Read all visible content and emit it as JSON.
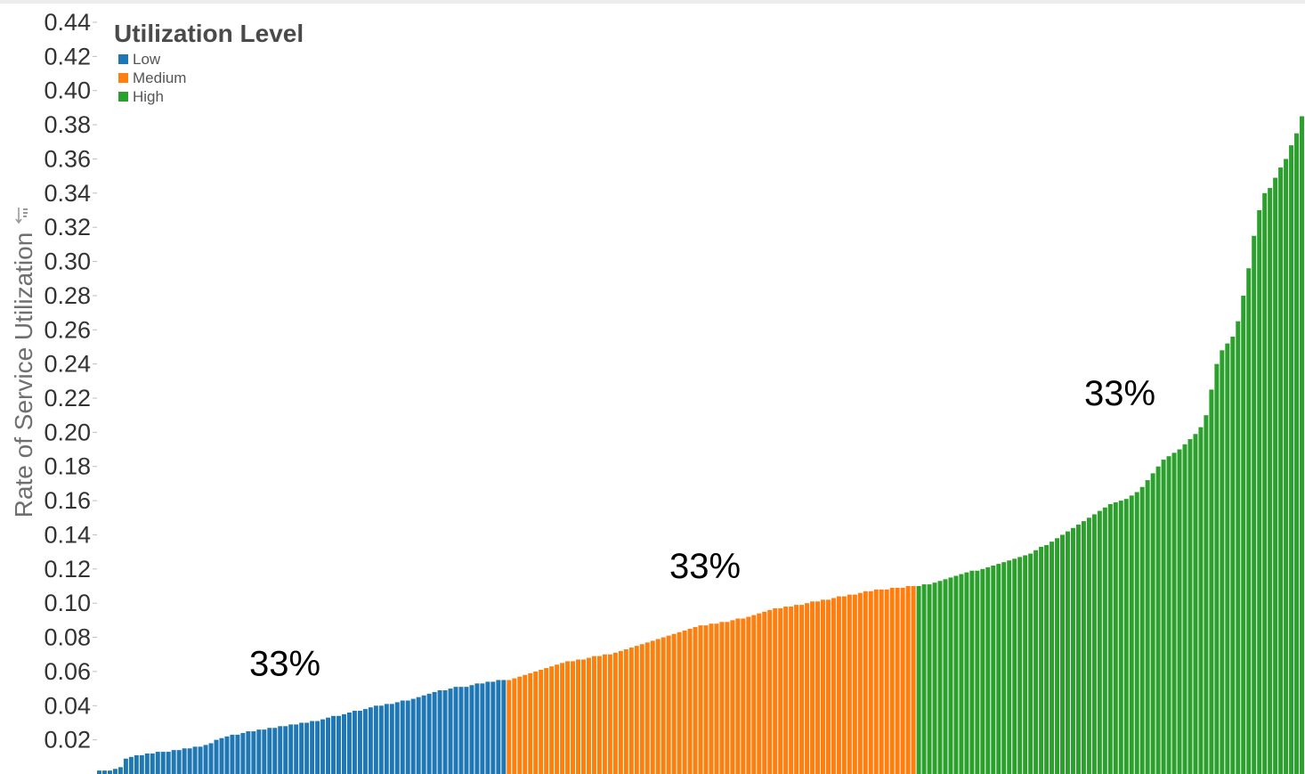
{
  "chart_data": {
    "type": "bar",
    "ylabel": "Rate of Service Utilization",
    "xlabel": "",
    "ylim": [
      0,
      0.44
    ],
    "yticks": [
      "0.02",
      "0.04",
      "0.06",
      "0.08",
      "0.10",
      "0.12",
      "0.14",
      "0.16",
      "0.18",
      "0.20",
      "0.22",
      "0.24",
      "0.26",
      "0.28",
      "0.30",
      "0.32",
      "0.34",
      "0.36",
      "0.38",
      "0.40",
      "0.42",
      "0.44"
    ],
    "grid": false,
    "legend": {
      "title": "Utilization Level",
      "position": "top-left",
      "items": [
        {
          "name": "Low",
          "color": "#1f77b4"
        },
        {
          "name": "Medium",
          "color": "#ff7f0e"
        },
        {
          "name": "High",
          "color": "#2ca02c"
        }
      ]
    },
    "series": [
      {
        "name": "Low",
        "color": "#1f77b4",
        "values": [
          0.002,
          0.002,
          0.002,
          0.003,
          0.004,
          0.009,
          0.01,
          0.011,
          0.011,
          0.012,
          0.012,
          0.013,
          0.013,
          0.013,
          0.014,
          0.014,
          0.015,
          0.015,
          0.016,
          0.016,
          0.017,
          0.018,
          0.02,
          0.021,
          0.022,
          0.023,
          0.023,
          0.024,
          0.025,
          0.025,
          0.026,
          0.026,
          0.027,
          0.027,
          0.028,
          0.028,
          0.029,
          0.029,
          0.03,
          0.03,
          0.031,
          0.031,
          0.032,
          0.033,
          0.034,
          0.034,
          0.035,
          0.036,
          0.037,
          0.037,
          0.038,
          0.039,
          0.04,
          0.04,
          0.041,
          0.041,
          0.042,
          0.043,
          0.043,
          0.044,
          0.045,
          0.046,
          0.047,
          0.048,
          0.049,
          0.049,
          0.05,
          0.051,
          0.051,
          0.051,
          0.052,
          0.053,
          0.053,
          0.054,
          0.054,
          0.055,
          0.055
        ]
      },
      {
        "name": "Medium",
        "color": "#ff7f0e",
        "values": [
          0.055,
          0.056,
          0.057,
          0.058,
          0.059,
          0.06,
          0.061,
          0.062,
          0.063,
          0.064,
          0.065,
          0.066,
          0.066,
          0.067,
          0.067,
          0.068,
          0.069,
          0.069,
          0.07,
          0.07,
          0.071,
          0.072,
          0.073,
          0.074,
          0.075,
          0.076,
          0.077,
          0.078,
          0.079,
          0.08,
          0.081,
          0.082,
          0.083,
          0.084,
          0.085,
          0.086,
          0.087,
          0.087,
          0.088,
          0.088,
          0.089,
          0.089,
          0.09,
          0.091,
          0.091,
          0.092,
          0.093,
          0.094,
          0.095,
          0.096,
          0.097,
          0.097,
          0.098,
          0.098,
          0.099,
          0.099,
          0.1,
          0.101,
          0.101,
          0.102,
          0.102,
          0.103,
          0.104,
          0.104,
          0.105,
          0.105,
          0.106,
          0.107,
          0.107,
          0.108,
          0.108,
          0.108,
          0.109,
          0.109,
          0.109,
          0.11,
          0.11
        ]
      },
      {
        "name": "High",
        "color": "#2ca02c",
        "values": [
          0.11,
          0.111,
          0.111,
          0.112,
          0.113,
          0.114,
          0.115,
          0.116,
          0.117,
          0.118,
          0.119,
          0.119,
          0.12,
          0.121,
          0.122,
          0.123,
          0.124,
          0.125,
          0.126,
          0.127,
          0.128,
          0.129,
          0.131,
          0.133,
          0.134,
          0.136,
          0.138,
          0.14,
          0.142,
          0.144,
          0.146,
          0.148,
          0.15,
          0.152,
          0.154,
          0.156,
          0.158,
          0.159,
          0.16,
          0.161,
          0.163,
          0.165,
          0.168,
          0.172,
          0.176,
          0.18,
          0.184,
          0.186,
          0.188,
          0.19,
          0.193,
          0.196,
          0.199,
          0.203,
          0.21,
          0.225,
          0.24,
          0.248,
          0.252,
          0.256,
          0.265,
          0.28,
          0.296,
          0.315,
          0.33,
          0.34,
          0.343,
          0.349,
          0.355,
          0.36,
          0.368,
          0.375,
          0.385
        ]
      }
    ],
    "annotations": [
      {
        "text": "33%",
        "x_segment": "Low",
        "y": 0.065
      },
      {
        "text": "33%",
        "x_segment": "Medium",
        "y": 0.122
      },
      {
        "text": "33%",
        "x_segment": "High",
        "y": 0.223
      }
    ]
  }
}
